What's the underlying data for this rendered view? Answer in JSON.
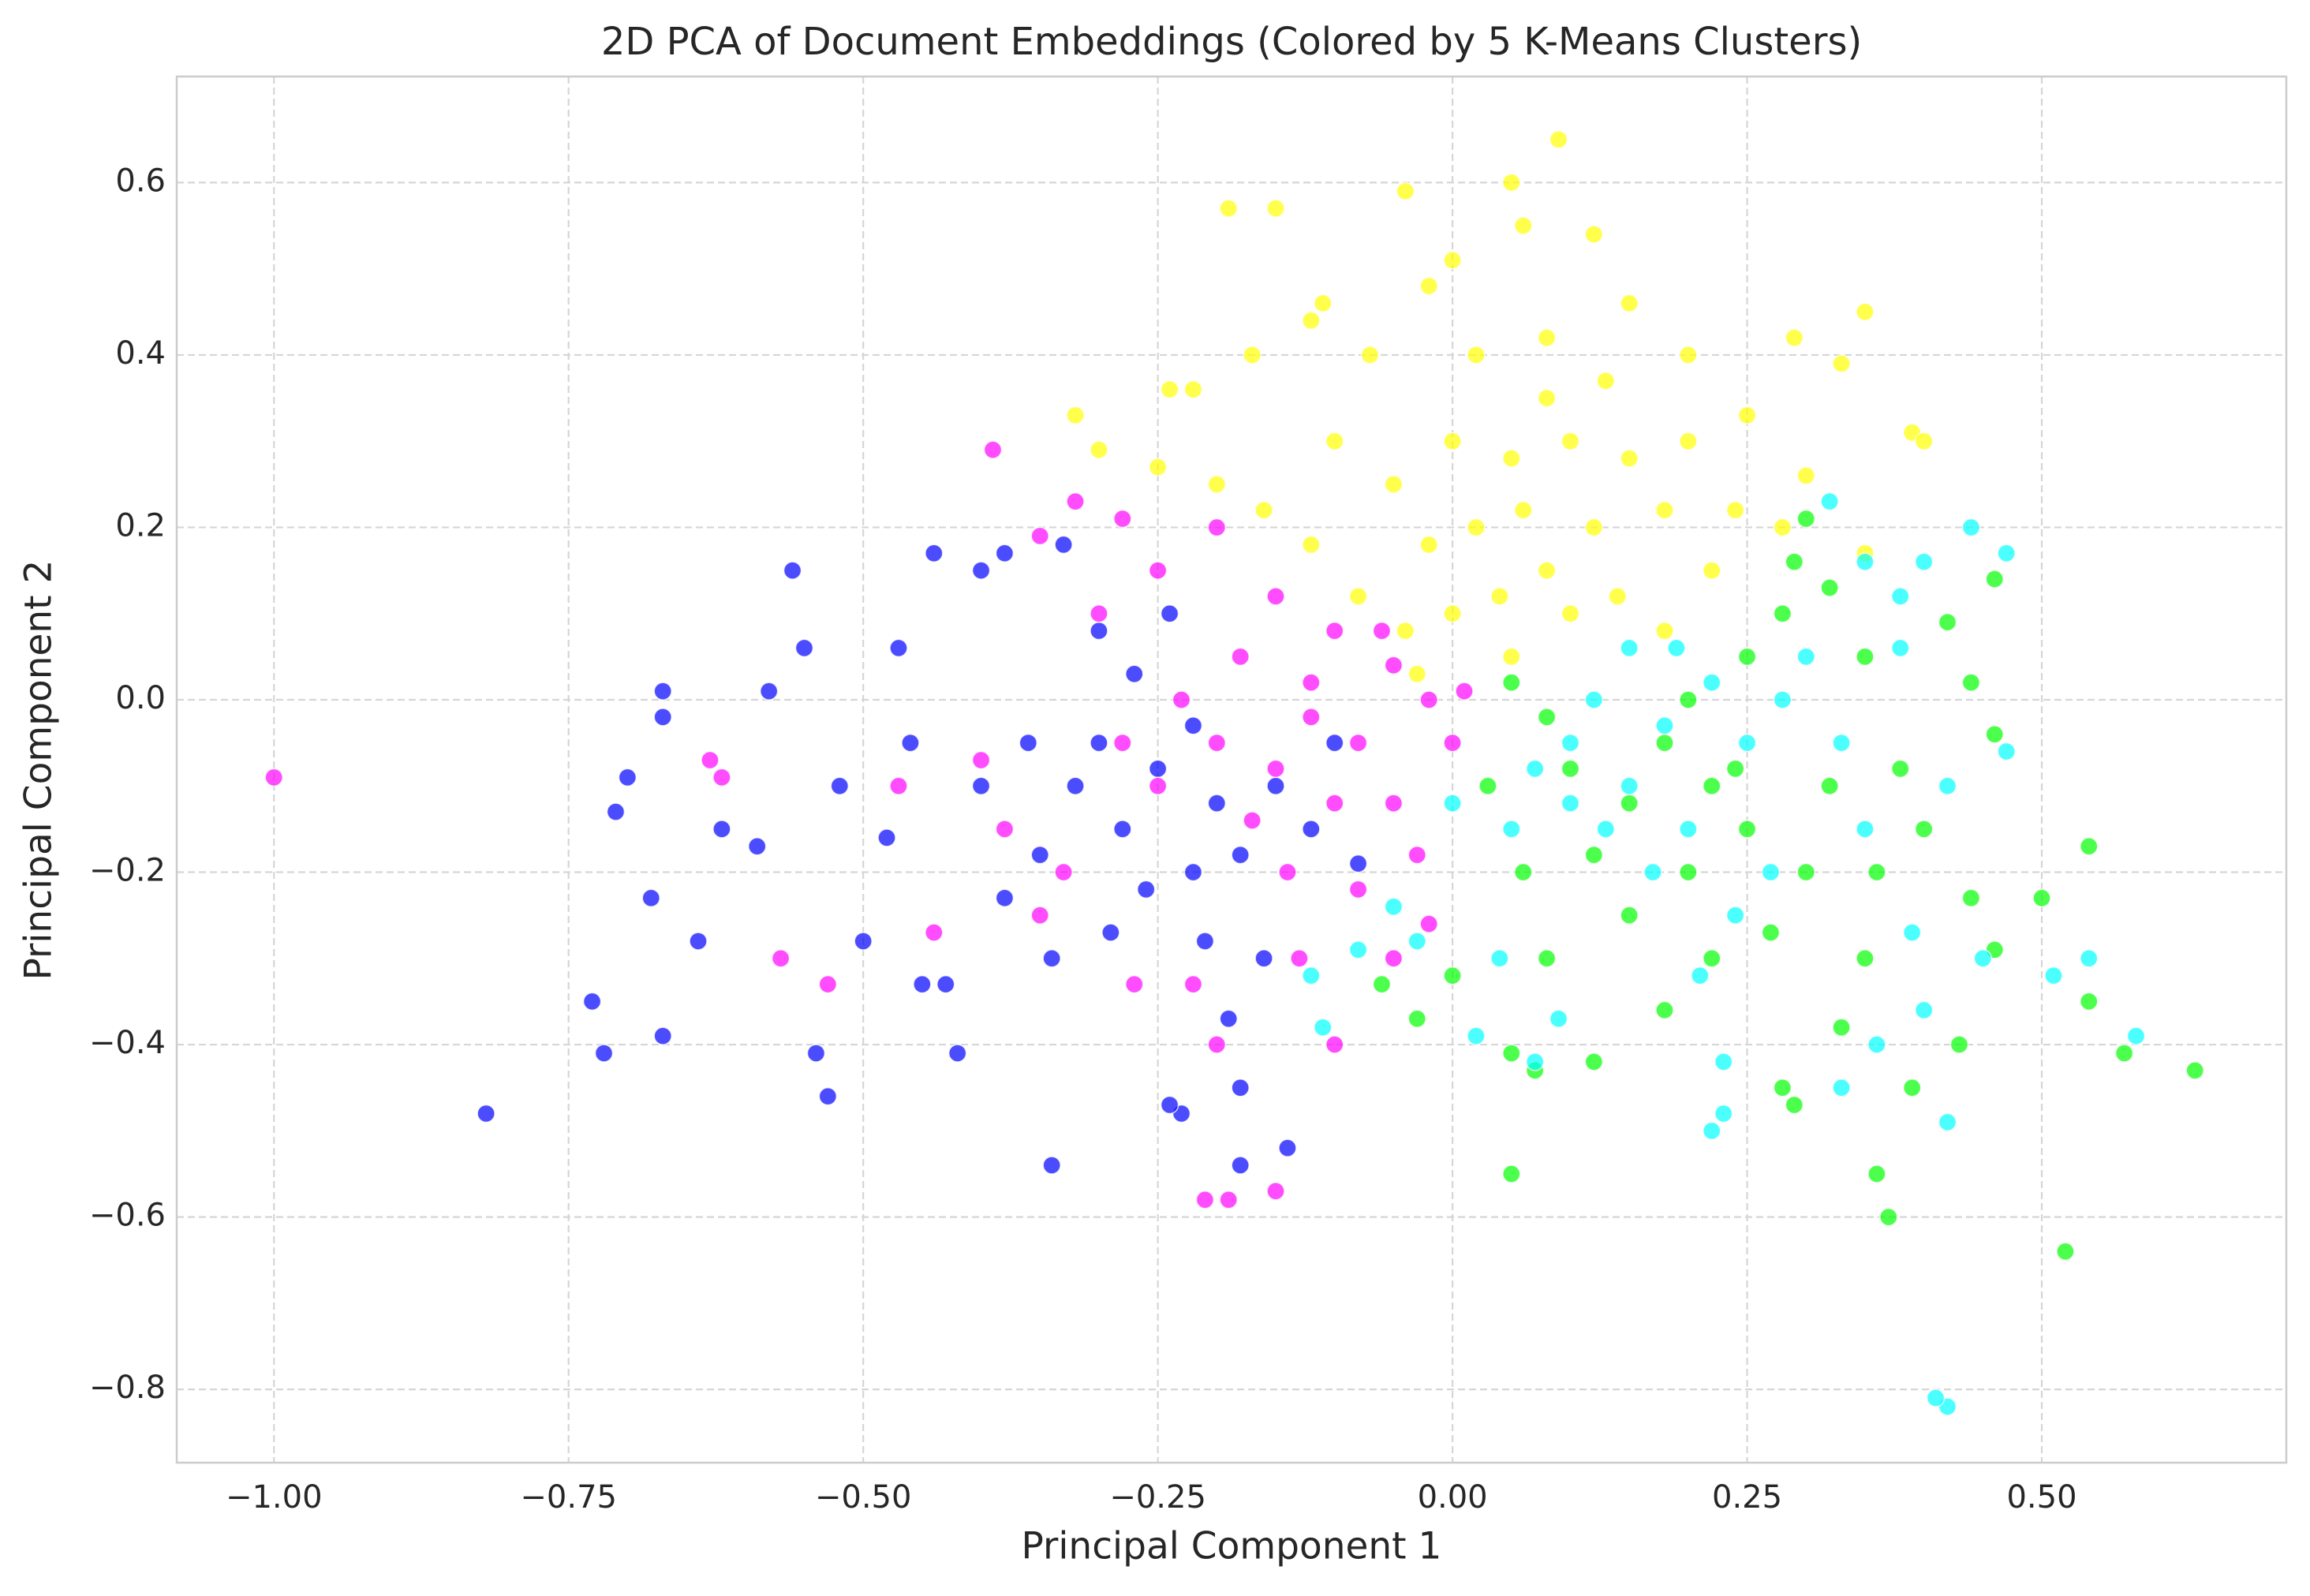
{
  "chart_data": {
    "type": "scatter",
    "title": "2D PCA of Document Embeddings (Colored by 5 K-Means Clusters)",
    "xlabel": "Principal Component 1",
    "ylabel": "Principal Component 2",
    "xlim": [
      -1.0825,
      0.7075
    ],
    "ylim": [
      -0.885,
      0.723
    ],
    "xticks": [
      {
        "value": -1.0,
        "label": "−1.00"
      },
      {
        "value": -0.75,
        "label": "−0.75"
      },
      {
        "value": -0.5,
        "label": "−0.50"
      },
      {
        "value": -0.25,
        "label": "−0.25"
      },
      {
        "value": 0,
        "label": "0.00"
      },
      0.25,
      {
        "value": 0.5,
        "label": "0.50"
      }
    ],
    "yticks": [
      {
        "value": -0.8,
        "label": "−0.8"
      },
      {
        "value": -0.6,
        "label": "−0.6"
      },
      {
        "value": -0.4,
        "label": "−0.4"
      },
      {
        "value": -0.2,
        "label": "−0.2"
      },
      {
        "value": 0,
        "label": "0.0"
      },
      0.2,
      0.4,
      0.6
    ],
    "grid": true,
    "series": [
      {
        "color": "#0000ff",
        "x": [
          -0.82,
          -0.72,
          -0.73,
          -0.67,
          -0.67,
          -0.67,
          -0.7,
          -0.71,
          -0.68,
          -0.64,
          -0.62,
          -0.56,
          -0.55,
          -0.58,
          -0.53,
          -0.54,
          -0.34,
          -0.23,
          -0.24,
          -0.18,
          -0.14,
          -0.18,
          -0.44,
          -0.4,
          -0.38,
          -0.33,
          -0.42,
          -0.45,
          -0.5,
          -0.59,
          -0.52,
          -0.48,
          -0.46,
          -0.47,
          -0.43,
          -0.38,
          -0.35,
          -0.32,
          -0.3,
          -0.28,
          -0.25,
          -0.22,
          -0.2,
          -0.18,
          -0.15,
          -0.27,
          -0.3,
          -0.24,
          -0.34,
          -0.29,
          -0.22,
          -0.19,
          -0.16,
          -0.12,
          -0.1,
          -0.08,
          -0.36,
          -0.4,
          -0.26,
          -0.21
        ],
        "y": [
          -0.48,
          -0.41,
          -0.35,
          -0.39,
          0.01,
          -0.02,
          -0.09,
          -0.13,
          -0.23,
          -0.28,
          -0.15,
          0.15,
          0.06,
          0.01,
          -0.46,
          -0.41,
          -0.54,
          -0.48,
          -0.47,
          -0.54,
          -0.52,
          -0.45,
          0.17,
          0.15,
          0.17,
          0.18,
          -0.41,
          -0.33,
          -0.28,
          -0.17,
          -0.1,
          -0.16,
          -0.05,
          0.06,
          -0.33,
          -0.23,
          -0.18,
          -0.1,
          -0.05,
          -0.15,
          -0.08,
          -0.03,
          -0.12,
          -0.18,
          -0.1,
          0.03,
          0.08,
          0.1,
          -0.3,
          -0.27,
          -0.2,
          -0.37,
          -0.3,
          -0.15,
          -0.05,
          -0.19,
          -0.05,
          -0.1,
          -0.22,
          -0.28
        ]
      },
      {
        "color": "#ff00ff",
        "x": [
          -1.0,
          -0.39,
          -0.32,
          -0.28,
          -0.63,
          -0.62,
          -0.53,
          -0.57,
          -0.44,
          -0.21,
          -0.19,
          -0.15,
          -0.2,
          -0.22,
          -0.1,
          -0.13,
          -0.05,
          -0.02,
          -0.35,
          -0.25,
          -0.2,
          -0.15,
          -0.1,
          -0.05,
          -0.02,
          0.0,
          -0.08,
          -0.12,
          -0.15,
          -0.18,
          -0.2,
          -0.23,
          -0.25,
          -0.28,
          -0.3,
          -0.1,
          -0.05,
          -0.03,
          -0.08,
          -0.14,
          -0.17,
          -0.12,
          -0.06,
          0.01,
          -0.33,
          -0.38,
          -0.4,
          -0.47,
          -0.35,
          -0.27
        ],
        "y": [
          -0.09,
          0.29,
          0.23,
          0.21,
          -0.07,
          -0.09,
          -0.33,
          -0.3,
          -0.27,
          -0.58,
          -0.58,
          -0.57,
          -0.4,
          -0.33,
          -0.4,
          -0.3,
          -0.3,
          -0.26,
          0.19,
          0.15,
          0.2,
          0.12,
          0.08,
          0.04,
          0.0,
          -0.05,
          -0.05,
          -0.02,
          -0.08,
          0.05,
          -0.05,
          0.0,
          -0.1,
          -0.05,
          0.1,
          -0.12,
          -0.12,
          -0.18,
          -0.22,
          -0.2,
          -0.14,
          0.02,
          0.08,
          0.01,
          -0.2,
          -0.15,
          -0.07,
          -0.1,
          -0.25,
          -0.33
        ]
      },
      {
        "color": "#ffff00",
        "x": [
          0.09,
          -0.19,
          -0.15,
          -0.04,
          0.05,
          0.06,
          0.0,
          0.12,
          0.15,
          -0.11,
          0.35,
          0.39,
          0.4,
          0.29,
          0.33,
          -0.32,
          -0.3,
          -0.24,
          -0.22,
          -0.17,
          -0.12,
          -0.07,
          -0.02,
          0.02,
          0.08,
          0.13,
          0.2,
          0.25,
          0.3,
          0.35,
          0.28,
          0.22,
          0.18,
          0.12,
          0.08,
          0.04,
          0.0,
          -0.04,
          -0.08,
          -0.12,
          -0.16,
          -0.2,
          -0.25,
          -0.05,
          0.0,
          0.05,
          0.1,
          0.15,
          0.02,
          -0.02,
          0.06,
          0.1,
          0.14,
          0.18,
          0.05,
          -0.03,
          0.2,
          -0.1,
          0.08,
          0.24
        ],
        "y": [
          0.65,
          0.57,
          0.57,
          0.59,
          0.6,
          0.55,
          0.51,
          0.54,
          0.46,
          0.46,
          0.45,
          0.31,
          0.3,
          0.42,
          0.39,
          0.33,
          0.29,
          0.36,
          0.36,
          0.4,
          0.44,
          0.4,
          0.48,
          0.4,
          0.42,
          0.37,
          0.4,
          0.33,
          0.26,
          0.17,
          0.2,
          0.15,
          0.22,
          0.2,
          0.15,
          0.12,
          0.1,
          0.08,
          0.12,
          0.18,
          0.22,
          0.25,
          0.27,
          0.25,
          0.3,
          0.28,
          0.3,
          0.28,
          0.2,
          0.18,
          0.22,
          0.1,
          0.12,
          0.08,
          0.05,
          0.03,
          0.3,
          0.3,
          0.35,
          0.22
        ]
      },
      {
        "color": "#00ff00",
        "x": [
          0.63,
          0.52,
          0.54,
          0.5,
          0.54,
          0.57,
          0.37,
          0.36,
          0.39,
          0.43,
          0.46,
          0.44,
          0.44,
          0.46,
          0.46,
          0.42,
          0.3,
          0.29,
          0.05,
          0.05,
          0.07,
          0.12,
          -0.03,
          -0.06,
          0.0,
          0.08,
          0.15,
          0.18,
          0.29,
          0.28,
          0.33,
          0.35,
          0.3,
          0.25,
          0.22,
          0.18,
          0.15,
          0.12,
          0.1,
          0.08,
          0.05,
          0.2,
          0.25,
          0.28,
          0.32,
          0.35,
          0.38,
          0.4,
          0.36,
          0.32,
          0.27,
          0.22,
          0.06,
          0.03,
          0.2,
          0.24
        ],
        "y": [
          -0.43,
          -0.64,
          -0.17,
          -0.23,
          -0.35,
          -0.41,
          -0.6,
          -0.55,
          -0.45,
          -0.4,
          -0.29,
          -0.23,
          0.02,
          -0.04,
          0.14,
          0.09,
          0.21,
          0.16,
          -0.55,
          -0.41,
          -0.43,
          -0.42,
          -0.37,
          -0.33,
          -0.32,
          -0.3,
          -0.25,
          -0.36,
          -0.47,
          -0.45,
          -0.38,
          -0.3,
          -0.2,
          -0.15,
          -0.1,
          -0.05,
          -0.12,
          -0.18,
          -0.08,
          -0.02,
          0.02,
          0.0,
          0.05,
          0.1,
          0.13,
          0.05,
          -0.08,
          -0.15,
          -0.2,
          -0.1,
          -0.27,
          -0.3,
          -0.2,
          -0.1,
          -0.2,
          -0.08
        ]
      },
      {
        "color": "#00ffff",
        "x": [
          0.42,
          0.41,
          0.22,
          0.23,
          0.42,
          0.23,
          0.33,
          0.58,
          0.51,
          0.54,
          0.45,
          0.36,
          0.4,
          0.47,
          0.44,
          0.4,
          0.32,
          0.47,
          0.42,
          0.38,
          0.35,
          -0.11,
          -0.12,
          -0.08,
          -0.05,
          -0.03,
          0.04,
          0.02,
          0.07,
          0.09,
          0.1,
          0.15,
          0.18,
          0.22,
          0.25,
          0.2,
          0.17,
          0.13,
          0.1,
          0.07,
          0.28,
          0.3,
          0.33,
          0.35,
          0.27,
          0.24,
          0.21,
          0.15,
          0.19,
          0.12,
          0.05,
          0.0,
          0.39,
          0.38
        ],
        "y": [
          -0.82,
          -0.81,
          -0.5,
          -0.48,
          -0.49,
          -0.42,
          -0.45,
          -0.39,
          -0.32,
          -0.3,
          -0.3,
          -0.4,
          -0.36,
          0.17,
          0.2,
          0.16,
          0.23,
          -0.06,
          -0.1,
          0.12,
          0.16,
          -0.38,
          -0.32,
          -0.29,
          -0.24,
          -0.28,
          -0.3,
          -0.39,
          -0.42,
          -0.37,
          -0.05,
          -0.1,
          -0.03,
          0.02,
          -0.05,
          -0.15,
          -0.2,
          -0.15,
          -0.12,
          -0.08,
          0.0,
          0.05,
          -0.05,
          -0.15,
          -0.2,
          -0.25,
          -0.32,
          0.06,
          0.06,
          0.0,
          -0.15,
          -0.12,
          -0.27,
          0.06
        ]
      }
    ]
  }
}
